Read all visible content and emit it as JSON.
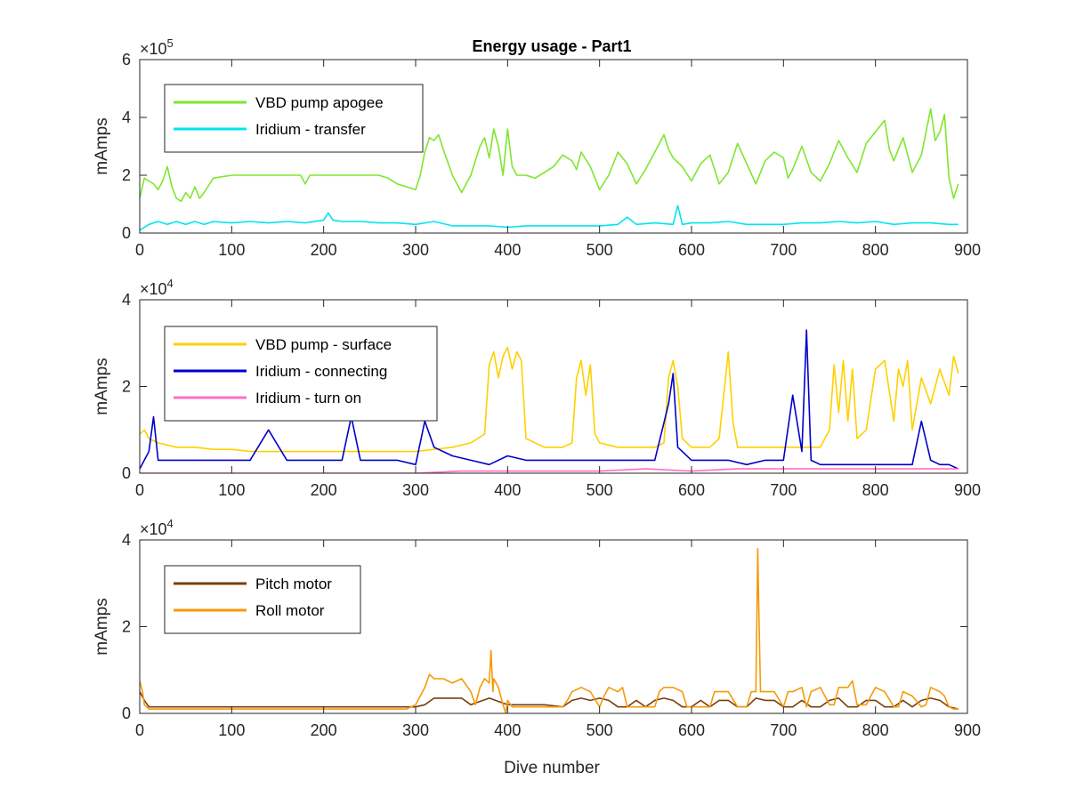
{
  "figure": {
    "title": "Energy usage - Part1",
    "xlabel": "Dive number"
  },
  "chart_data": [
    {
      "type": "line",
      "title": "Energy usage - Part1",
      "xlabel": "",
      "ylabel": "mAmps",
      "xlim": [
        0,
        900
      ],
      "ylim": [
        0,
        600000
      ],
      "xticks": [
        "0",
        "100",
        "200",
        "300",
        "400",
        "500",
        "600",
        "700",
        "800",
        "900"
      ],
      "yticks": [
        "0",
        "2",
        "4",
        "6"
      ],
      "yexponent": {
        "base": "×10",
        "power": "5"
      },
      "legend_position": "top-left",
      "grid": false,
      "series": [
        {
          "name": "VBD pump apogee",
          "color": "#7FE62E",
          "x": [
            0,
            5,
            10,
            15,
            20,
            25,
            30,
            35,
            40,
            45,
            50,
            55,
            60,
            65,
            70,
            80,
            100,
            120,
            140,
            160,
            170,
            175,
            180,
            185,
            190,
            200,
            220,
            240,
            260,
            270,
            280,
            290,
            300,
            305,
            310,
            315,
            320,
            325,
            330,
            340,
            350,
            360,
            370,
            375,
            380,
            385,
            390,
            395,
            400,
            405,
            410,
            420,
            430,
            440,
            450,
            460,
            470,
            475,
            480,
            490,
            500,
            510,
            520,
            530,
            540,
            550,
            560,
            570,
            575,
            580,
            590,
            600,
            610,
            620,
            630,
            640,
            650,
            660,
            670,
            680,
            690,
            700,
            705,
            710,
            720,
            730,
            740,
            750,
            760,
            770,
            780,
            790,
            800,
            810,
            815,
            820,
            830,
            840,
            850,
            860,
            865,
            870,
            875,
            880,
            885,
            890
          ],
          "values": [
            120000,
            190000,
            180000,
            170000,
            150000,
            180000,
            230000,
            160000,
            120000,
            110000,
            140000,
            120000,
            160000,
            120000,
            140000,
            190000,
            200000,
            200000,
            200000,
            200000,
            200000,
            200000,
            170000,
            200000,
            200000,
            200000,
            200000,
            200000,
            200000,
            190000,
            170000,
            160000,
            150000,
            200000,
            280000,
            330000,
            320000,
            340000,
            290000,
            200000,
            140000,
            200000,
            300000,
            330000,
            260000,
            360000,
            300000,
            200000,
            360000,
            230000,
            200000,
            200000,
            190000,
            210000,
            230000,
            270000,
            250000,
            220000,
            280000,
            230000,
            150000,
            200000,
            280000,
            240000,
            170000,
            220000,
            280000,
            340000,
            290000,
            260000,
            230000,
            180000,
            240000,
            270000,
            170000,
            210000,
            310000,
            240000,
            170000,
            250000,
            280000,
            260000,
            190000,
            220000,
            300000,
            210000,
            180000,
            240000,
            320000,
            260000,
            210000,
            310000,
            350000,
            390000,
            290000,
            250000,
            330000,
            210000,
            270000,
            430000,
            320000,
            350000,
            410000,
            190000,
            120000,
            170000
          ]
        },
        {
          "name": "Iridium - transfer",
          "color": "#00E5EE",
          "x": [
            0,
            10,
            20,
            30,
            40,
            50,
            60,
            70,
            80,
            100,
            120,
            140,
            160,
            180,
            200,
            205,
            210,
            220,
            240,
            260,
            280,
            300,
            320,
            340,
            360,
            380,
            400,
            420,
            440,
            460,
            480,
            500,
            520,
            530,
            540,
            560,
            580,
            585,
            590,
            600,
            620,
            640,
            660,
            680,
            700,
            720,
            740,
            760,
            780,
            800,
            820,
            840,
            860,
            880,
            890
          ],
          "values": [
            10000,
            30000,
            40000,
            30000,
            40000,
            30000,
            40000,
            30000,
            40000,
            35000,
            40000,
            35000,
            40000,
            35000,
            45000,
            70000,
            45000,
            40000,
            40000,
            35000,
            35000,
            30000,
            40000,
            25000,
            25000,
            25000,
            20000,
            25000,
            25000,
            25000,
            25000,
            25000,
            30000,
            55000,
            30000,
            35000,
            30000,
            95000,
            30000,
            35000,
            35000,
            40000,
            30000,
            30000,
            30000,
            35000,
            35000,
            40000,
            35000,
            40000,
            30000,
            35000,
            35000,
            30000,
            30000
          ]
        }
      ]
    },
    {
      "type": "line",
      "title": "",
      "xlabel": "",
      "ylabel": "mAmps",
      "xlim": [
        0,
        900
      ],
      "ylim": [
        0,
        40000
      ],
      "xticks": [
        "0",
        "100",
        "200",
        "300",
        "400",
        "500",
        "600",
        "700",
        "800",
        "900"
      ],
      "yticks": [
        "0",
        "2",
        "4"
      ],
      "yexponent": {
        "base": "×10",
        "power": "4"
      },
      "legend_position": "top-left",
      "grid": false,
      "series": [
        {
          "name": "VBD pump - surface",
          "color": "#FFD000",
          "x": [
            0,
            5,
            10,
            20,
            40,
            60,
            80,
            100,
            120,
            140,
            160,
            180,
            200,
            220,
            240,
            260,
            280,
            300,
            320,
            340,
            360,
            375,
            380,
            385,
            390,
            395,
            400,
            405,
            410,
            415,
            420,
            440,
            460,
            470,
            475,
            480,
            485,
            490,
            495,
            500,
            520,
            540,
            560,
            570,
            575,
            580,
            585,
            590,
            600,
            620,
            630,
            640,
            645,
            650,
            660,
            680,
            700,
            720,
            740,
            750,
            755,
            760,
            765,
            770,
            775,
            780,
            790,
            800,
            810,
            820,
            825,
            830,
            835,
            840,
            850,
            860,
            870,
            880,
            885,
            890
          ],
          "values": [
            9000,
            10000,
            8000,
            7000,
            6000,
            6000,
            5500,
            5500,
            5000,
            5000,
            5000,
            5000,
            5000,
            5000,
            5000,
            5000,
            5000,
            5000,
            5500,
            6000,
            7000,
            9000,
            25000,
            28000,
            22000,
            27000,
            29000,
            24000,
            28000,
            26000,
            8000,
            6000,
            6000,
            7000,
            22000,
            26000,
            18000,
            25000,
            9000,
            7000,
            6000,
            6000,
            6000,
            7000,
            22000,
            26000,
            20000,
            8000,
            6000,
            6000,
            8000,
            28000,
            12000,
            6000,
            6000,
            6000,
            6000,
            6000,
            6000,
            10000,
            25000,
            14000,
            26000,
            12000,
            24000,
            8000,
            10000,
            24000,
            26000,
            12000,
            24000,
            20000,
            26000,
            10000,
            22000,
            16000,
            24000,
            18000,
            27000,
            23000
          ]
        },
        {
          "name": "Iridium - connecting",
          "color": "#0000CD",
          "x": [
            0,
            10,
            15,
            20,
            40,
            60,
            80,
            100,
            120,
            140,
            160,
            180,
            200,
            220,
            230,
            240,
            260,
            280,
            300,
            310,
            315,
            320,
            340,
            360,
            380,
            400,
            420,
            440,
            460,
            480,
            500,
            520,
            540,
            560,
            575,
            580,
            585,
            600,
            620,
            640,
            660,
            680,
            700,
            710,
            720,
            725,
            730,
            740,
            760,
            780,
            800,
            820,
            840,
            850,
            860,
            870,
            880,
            890
          ],
          "values": [
            1000,
            5000,
            13000,
            3000,
            3000,
            3000,
            3000,
            3000,
            3000,
            10000,
            3000,
            3000,
            3000,
            3000,
            13000,
            3000,
            3000,
            3000,
            2000,
            12000,
            9000,
            6000,
            4000,
            3000,
            2000,
            4000,
            3000,
            3000,
            3000,
            3000,
            3000,
            3000,
            3000,
            3000,
            16000,
            23000,
            6000,
            3000,
            3000,
            3000,
            2000,
            3000,
            3000,
            18000,
            5000,
            33000,
            3000,
            2000,
            2000,
            2000,
            2000,
            2000,
            2000,
            12000,
            3000,
            2000,
            2000,
            1000
          ]
        },
        {
          "name": "Iridium - turn on",
          "color": "#FF6EC7",
          "x": [
            0,
            100,
            200,
            300,
            350,
            400,
            450,
            500,
            550,
            600,
            650,
            700,
            750,
            800,
            850,
            890
          ],
          "values": [
            0,
            0,
            0,
            0,
            500,
            500,
            500,
            500,
            1000,
            500,
            1000,
            1000,
            1000,
            1000,
            1000,
            1000
          ]
        }
      ]
    },
    {
      "type": "line",
      "title": "",
      "xlabel": "Dive number",
      "ylabel": "mAmps",
      "xlim": [
        0,
        900
      ],
      "ylim": [
        0,
        40000
      ],
      "xticks": [
        "0",
        "100",
        "200",
        "300",
        "400",
        "500",
        "600",
        "700",
        "800",
        "900"
      ],
      "yticks": [
        "0",
        "2",
        "4"
      ],
      "yexponent": {
        "base": "×10",
        "power": "4"
      },
      "legend_position": "top-left",
      "grid": false,
      "series": [
        {
          "name": "Pitch motor",
          "color": "#7A3D0A",
          "x": [
            0,
            5,
            10,
            50,
            100,
            150,
            200,
            250,
            290,
            300,
            310,
            320,
            330,
            340,
            350,
            360,
            380,
            400,
            420,
            440,
            460,
            470,
            480,
            490,
            500,
            510,
            520,
            530,
            540,
            550,
            560,
            570,
            580,
            590,
            600,
            610,
            620,
            630,
            640,
            650,
            660,
            670,
            680,
            690,
            700,
            710,
            720,
            730,
            740,
            750,
            760,
            770,
            780,
            790,
            800,
            810,
            820,
            830,
            840,
            850,
            860,
            870,
            880,
            890
          ],
          "values": [
            5000,
            3000,
            1500,
            1500,
            1500,
            1500,
            1500,
            1500,
            1500,
            1500,
            2000,
            3500,
            3500,
            3500,
            3500,
            2000,
            3500,
            2000,
            2000,
            2000,
            1500,
            3000,
            3500,
            3000,
            3500,
            3000,
            1500,
            1500,
            3000,
            1500,
            3000,
            3500,
            3000,
            1500,
            1500,
            3000,
            1500,
            3000,
            3000,
            1500,
            1500,
            3500,
            3000,
            3000,
            1500,
            1500,
            3000,
            1500,
            1500,
            3000,
            3500,
            1500,
            1500,
            3000,
            3000,
            1500,
            1500,
            3000,
            1500,
            3000,
            3500,
            3000,
            1500,
            1000
          ]
        },
        {
          "name": "Roll motor",
          "color": "#F59A0A",
          "x": [
            0,
            3,
            5,
            10,
            20,
            50,
            100,
            150,
            200,
            250,
            290,
            300,
            305,
            310,
            315,
            320,
            330,
            340,
            350,
            360,
            365,
            370,
            375,
            380,
            382,
            384,
            385,
            390,
            395,
            398,
            400,
            405,
            410,
            420,
            430,
            440,
            460,
            465,
            470,
            480,
            490,
            500,
            505,
            510,
            520,
            525,
            530,
            540,
            560,
            565,
            570,
            580,
            590,
            595,
            600,
            620,
            625,
            630,
            640,
            650,
            660,
            665,
            670,
            672,
            673,
            675,
            680,
            690,
            700,
            705,
            710,
            720,
            725,
            730,
            740,
            750,
            755,
            760,
            770,
            775,
            780,
            790,
            800,
            810,
            820,
            825,
            830,
            840,
            850,
            855,
            860,
            870,
            875,
            880,
            885,
            890
          ],
          "values": [
            7500,
            5000,
            2000,
            1000,
            1000,
            1000,
            1000,
            1000,
            1000,
            1000,
            1000,
            2000,
            4000,
            6000,
            9000,
            8000,
            8000,
            7000,
            8000,
            5000,
            2000,
            6000,
            8000,
            7000,
            14500,
            5000,
            8000,
            6000,
            2000,
            0,
            3000,
            1500,
            1500,
            1500,
            1500,
            1500,
            1500,
            3000,
            5000,
            6000,
            5000,
            1500,
            4000,
            6000,
            5000,
            6000,
            1500,
            1500,
            1500,
            5000,
            6000,
            6000,
            5000,
            1500,
            1500,
            1500,
            5000,
            5000,
            5000,
            1500,
            1500,
            5000,
            5000,
            38000,
            26000,
            5000,
            5000,
            5000,
            1500,
            5000,
            5000,
            6000,
            1500,
            5000,
            6000,
            2000,
            2000,
            6000,
            6000,
            7500,
            2000,
            2000,
            6000,
            5000,
            1500,
            1500,
            5000,
            4000,
            1500,
            2000,
            6000,
            5000,
            4000,
            1500,
            1000,
            1000
          ]
        }
      ]
    }
  ]
}
